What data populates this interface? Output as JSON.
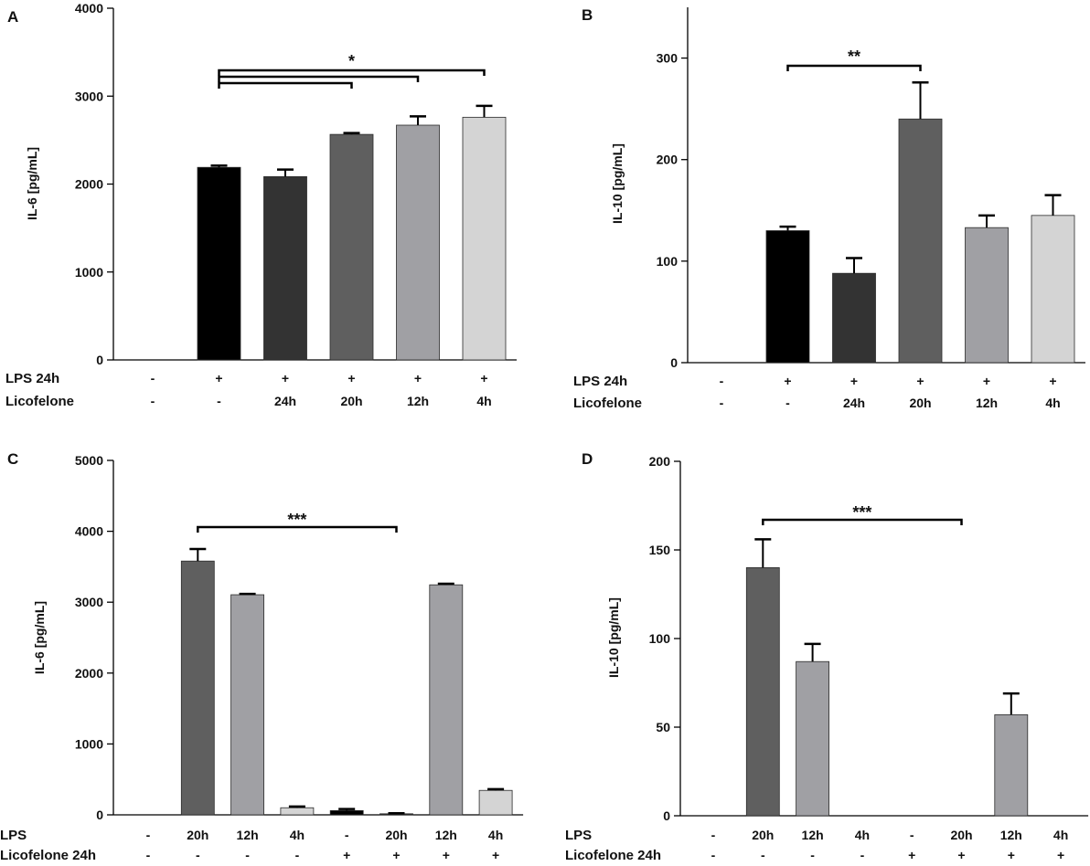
{
  "chart_data": [
    {
      "panel": "A",
      "type": "bar",
      "ylabel": "IL-6 [pg/mL]",
      "ylim": [
        0,
        4000
      ],
      "yticks": [
        0,
        1000,
        2000,
        3000,
        4000
      ],
      "categories": [
        "1",
        "2",
        "3",
        "4",
        "5",
        "6"
      ],
      "values": [
        0,
        2190,
        2085,
        2565,
        2670,
        2760
      ],
      "errors": [
        0,
        20,
        80,
        15,
        100,
        130
      ],
      "colors": [
        "#000000",
        "#000000",
        "#333333",
        "#5f5f5f",
        "#a0a0a4",
        "#d4d4d4"
      ],
      "row_labels": [
        "LPS 24h",
        "Licofelone"
      ],
      "rows": [
        [
          "-",
          "+",
          "+",
          "+",
          "+",
          "+"
        ],
        [
          "-",
          "-",
          "24h",
          "20h",
          "12h",
          "4h"
        ]
      ],
      "significance": [
        {
          "from": 1,
          "to": 5,
          "label": "*"
        },
        {
          "from": 1,
          "to": 4,
          "label": ""
        },
        {
          "from": 1,
          "to": 3,
          "label": ""
        }
      ]
    },
    {
      "panel": "B",
      "type": "bar",
      "ylabel": "IL-10 [pg/mL]",
      "ylim": [
        0,
        350
      ],
      "yticks": [
        0,
        100,
        200,
        300
      ],
      "categories": [
        "1",
        "2",
        "3",
        "4",
        "5",
        "6"
      ],
      "values": [
        0,
        130,
        88,
        240,
        133,
        145
      ],
      "errors": [
        0,
        4,
        15,
        36,
        12,
        20
      ],
      "colors": [
        "#000000",
        "#000000",
        "#333333",
        "#5f5f5f",
        "#a0a0a4",
        "#d4d4d4"
      ],
      "row_labels": [
        "LPS 24h",
        "Licofelone"
      ],
      "rows": [
        [
          "-",
          "+",
          "+",
          "+",
          "+",
          "+"
        ],
        [
          "-",
          "-",
          "24h",
          "20h",
          "12h",
          "4h"
        ]
      ],
      "significance": [
        {
          "from": 1,
          "to": 3,
          "label": "**"
        }
      ]
    },
    {
      "panel": "C",
      "type": "bar",
      "ylabel": "IL-6 [pg/mL]",
      "ylim": [
        0,
        5000
      ],
      "yticks": [
        0,
        1000,
        2000,
        3000,
        4000,
        5000
      ],
      "categories": [
        "1",
        "2",
        "3",
        "4",
        "5",
        "6",
        "7",
        "8"
      ],
      "values": [
        0,
        3580,
        3105,
        100,
        60,
        15,
        3245,
        345
      ],
      "errors": [
        0,
        170,
        12,
        18,
        22,
        8,
        15,
        18
      ],
      "colors": [
        "#000000",
        "#5f5f5f",
        "#a0a0a4",
        "#d4d4d4",
        "#000000",
        "#333333",
        "#a0a0a4",
        "#d4d4d4"
      ],
      "row_labels": [
        "LPS",
        "Licofelone 24h"
      ],
      "rows": [
        [
          "-",
          "20h",
          "12h",
          "4h",
          "-",
          "20h",
          "12h",
          "4h"
        ],
        [
          "-",
          "-",
          "-",
          "-",
          "+",
          "+",
          "+",
          "+"
        ]
      ],
      "significance": [
        {
          "from": 1,
          "to": 5,
          "label": "***"
        }
      ]
    },
    {
      "panel": "D",
      "type": "bar",
      "ylabel": "IL-10 [pg/mL]",
      "ylim": [
        0,
        200
      ],
      "yticks": [
        0,
        50,
        100,
        150,
        200
      ],
      "categories": [
        "1",
        "2",
        "3",
        "4",
        "5",
        "6",
        "7",
        "8"
      ],
      "values": [
        0,
        140,
        87,
        0,
        0,
        0,
        57,
        0
      ],
      "errors": [
        0,
        16,
        10,
        0,
        0,
        0,
        12,
        0
      ],
      "colors": [
        "#000000",
        "#5f5f5f",
        "#a0a0a4",
        "#d4d4d4",
        "#000000",
        "#333333",
        "#a0a0a4",
        "#d4d4d4"
      ],
      "row_labels": [
        "LPS",
        "Licofelone 24h"
      ],
      "rows": [
        [
          "-",
          "20h",
          "12h",
          "4h",
          "-",
          "20h",
          "12h",
          "4h"
        ],
        [
          "-",
          "-",
          "-",
          "-",
          "+",
          "+",
          "+",
          "+"
        ]
      ],
      "significance": [
        {
          "from": 1,
          "to": 5,
          "label": "***"
        }
      ]
    }
  ]
}
